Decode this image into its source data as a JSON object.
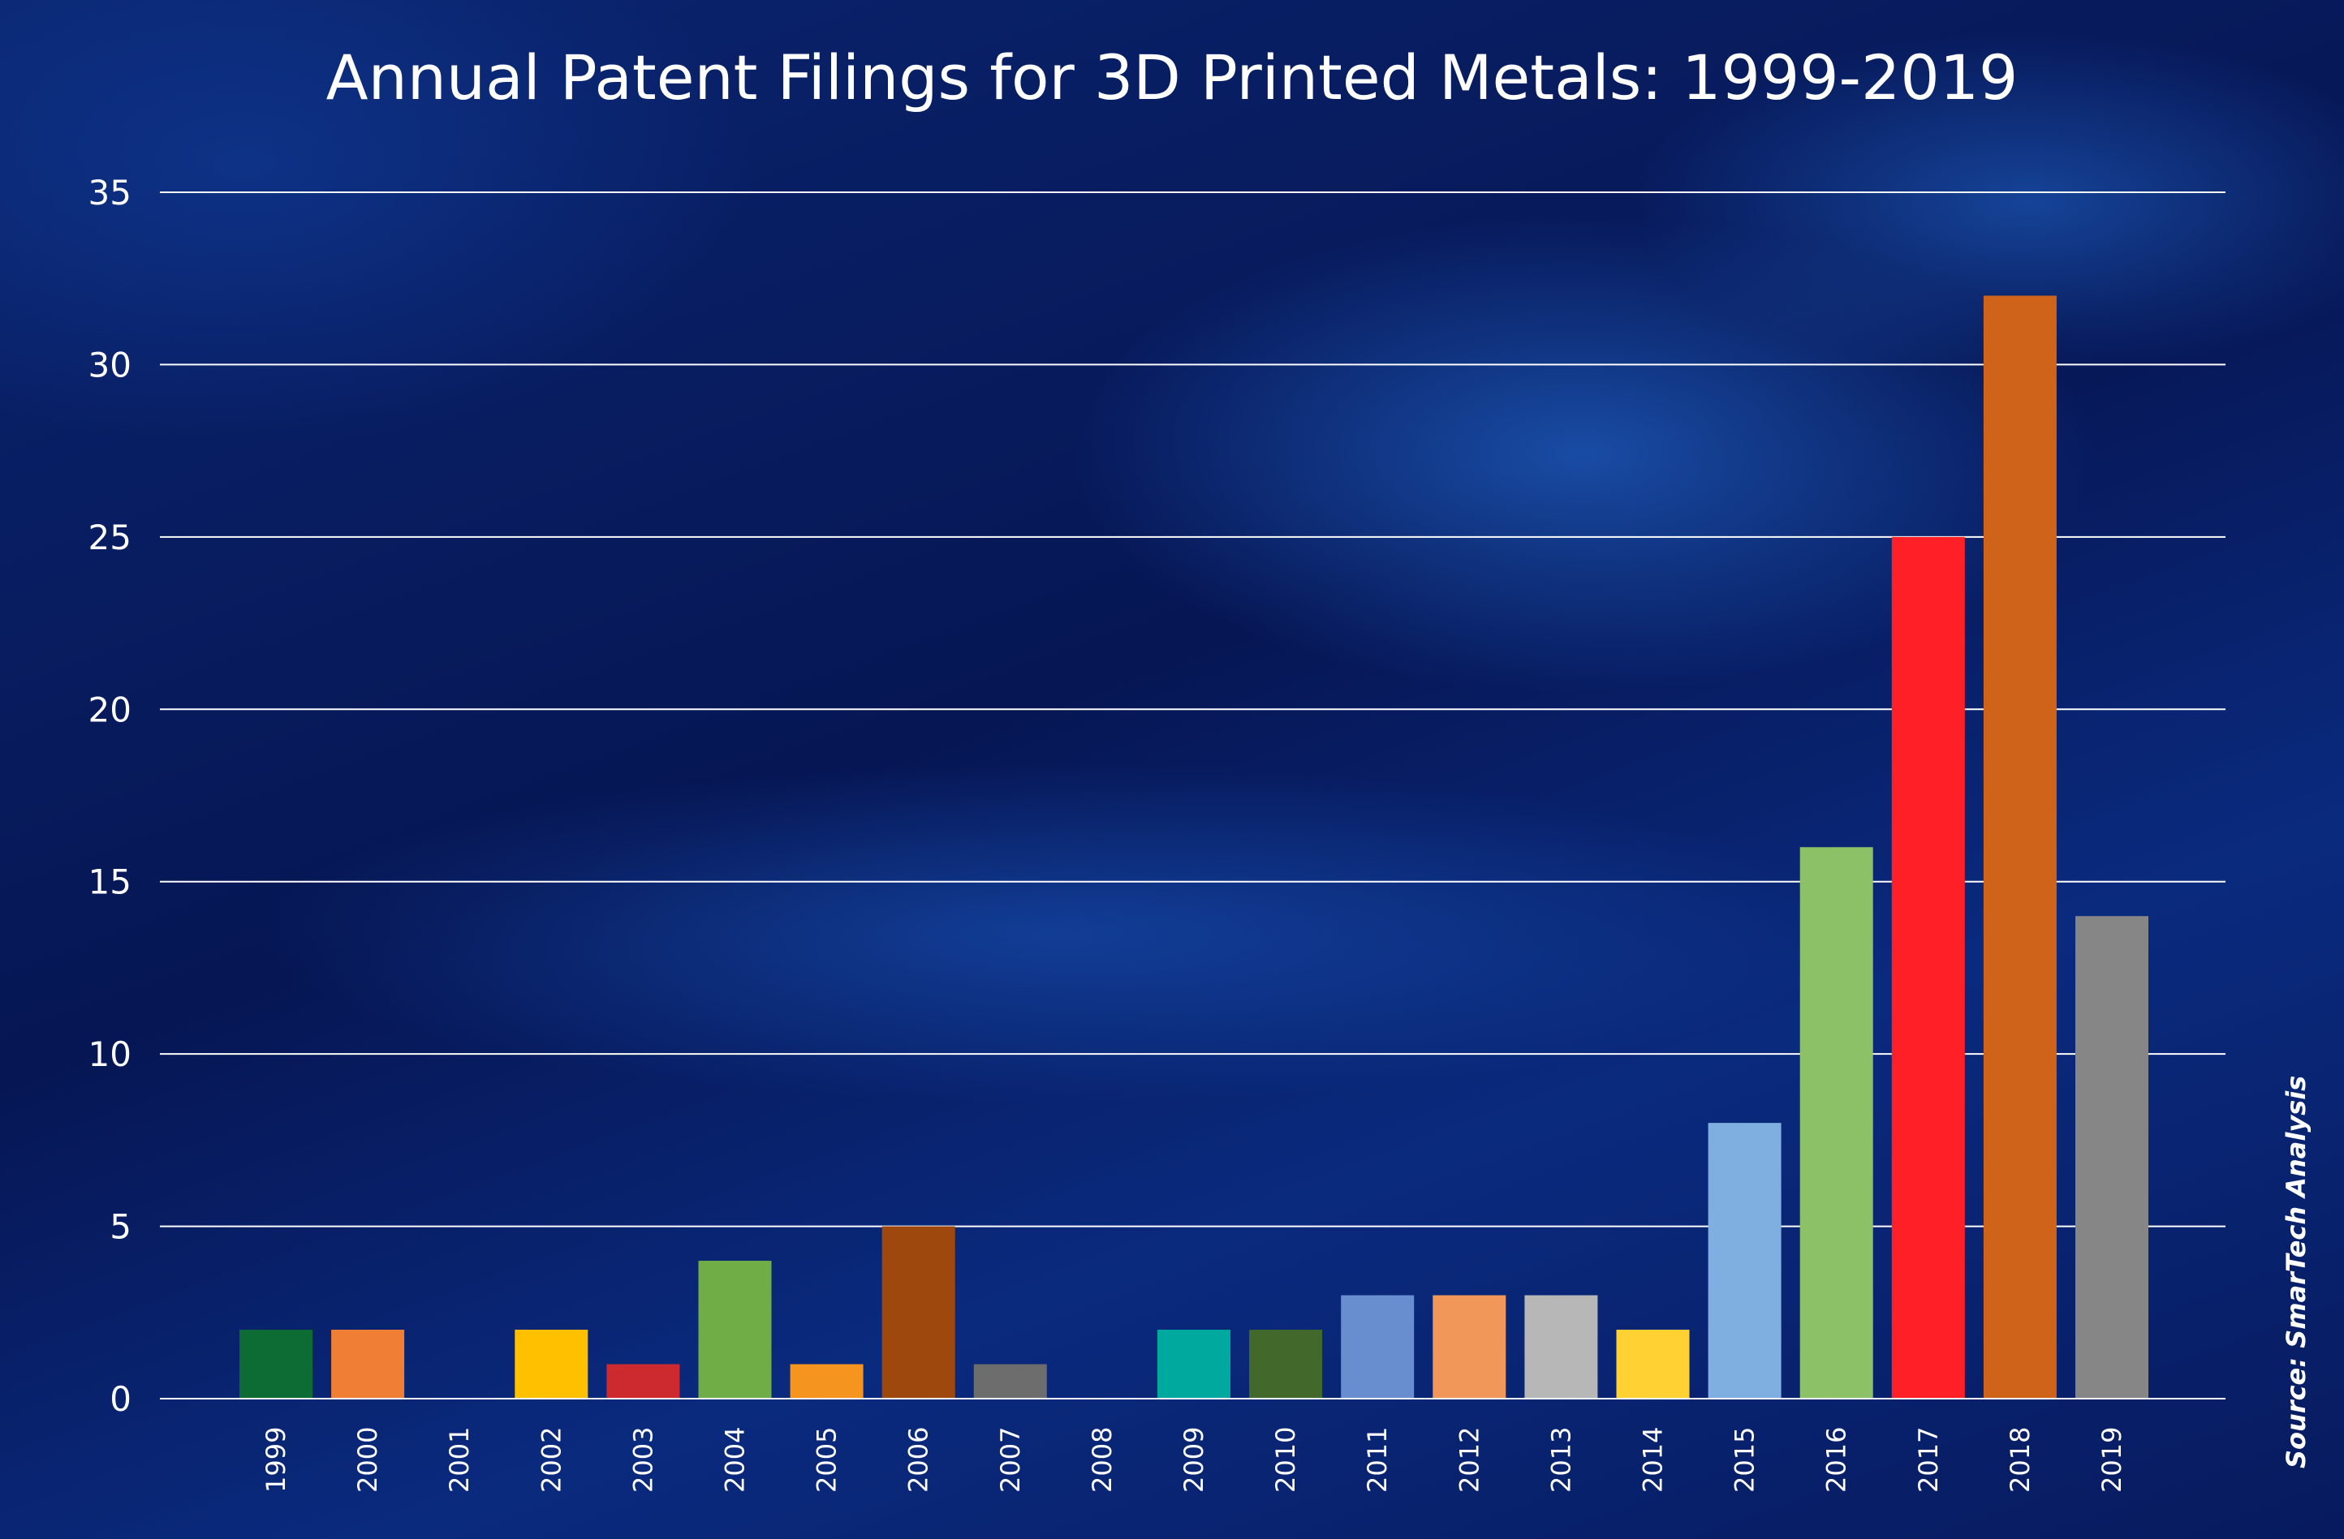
{
  "chart_data": {
    "type": "bar",
    "title": "Annual Patent Filings for 3D Printed Metals: 1999-2019",
    "source": "Source: SmarTech Analysis",
    "xlabel": "",
    "ylabel": "",
    "ylim": [
      0,
      35
    ],
    "yticks": [
      0,
      5,
      10,
      15,
      20,
      25,
      30,
      35
    ],
    "grid": true,
    "legend": "none",
    "categories": [
      "1999",
      "2000",
      "2001",
      "2002",
      "2003",
      "2004",
      "2005",
      "2006",
      "2007",
      "2008",
      "2009",
      "2010",
      "2011",
      "2012",
      "2013",
      "2014",
      "2015",
      "2016",
      "2017",
      "2018",
      "2019"
    ],
    "values": [
      2,
      2,
      0,
      2,
      1,
      4,
      1,
      5,
      1,
      0,
      2,
      2,
      3,
      3,
      3,
      2,
      8,
      16,
      25,
      32,
      14
    ],
    "colors": [
      "#0d6b34",
      "#f07f35",
      "#888888",
      "#ffc000",
      "#cc2a2e",
      "#70ad47",
      "#f5941e",
      "#9e480e",
      "#6d6d6d",
      "#888888",
      "#00a99d",
      "#43682b",
      "#698ed0",
      "#f1975a",
      "#b7b7b7",
      "#ffd133",
      "#7faee0",
      "#8cc168",
      "#ff1f27",
      "#d0631a",
      "#868686"
    ]
  }
}
